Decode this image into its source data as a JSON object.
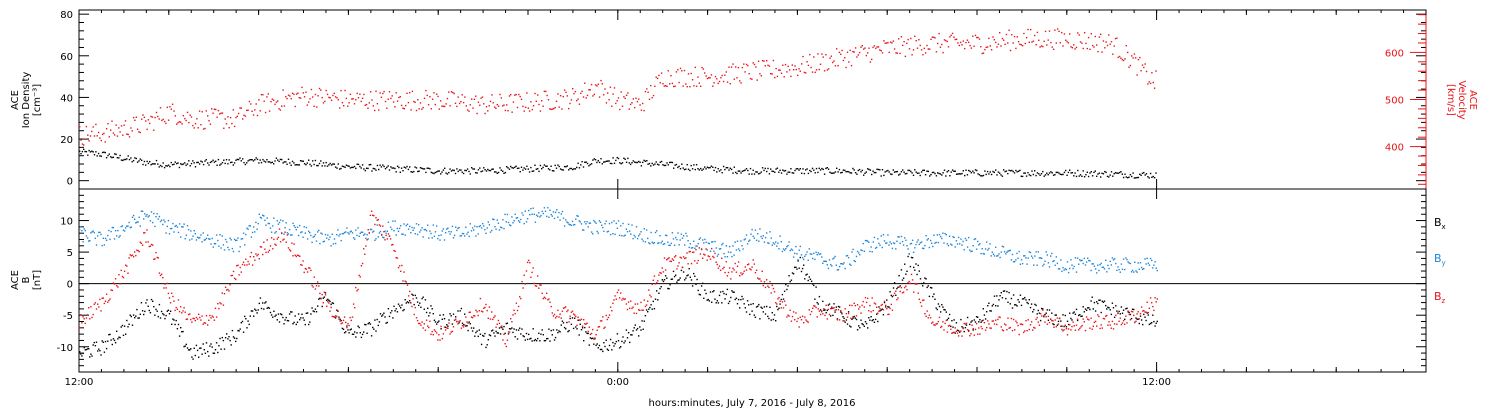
{
  "xaxis": {
    "title": "hours:minutes, July  7, 2016 - July  8, 2016",
    "tick_labels": [
      "12:00",
      "0:00",
      "12:00"
    ],
    "range_hours": [
      0,
      30
    ],
    "data_end_hours": 24
  },
  "colors": {
    "black": "#000000",
    "red": "#e8141a",
    "blue": "#1f86d8"
  },
  "chart_data": [
    {
      "type": "scatter",
      "panel": "ion-density-velocity",
      "ylabel_left": [
        "ACE",
        "Ion Density",
        "[cm⁻³]"
      ],
      "ylim_left": [
        -4,
        82
      ],
      "yticks_left": [
        "80",
        "60",
        "40",
        "20",
        "0"
      ],
      "ylabel_right": [
        "ACE",
        "Velocity",
        "[km/s]"
      ],
      "ylim_right": [
        310,
        690
      ],
      "yticks_right": [
        "600",
        "500",
        "400"
      ],
      "series": [
        {
          "key": "density",
          "axis": "left",
          "color": "black",
          "x": [
            0,
            0.5,
            1,
            1.5,
            2,
            3,
            4,
            5,
            6,
            7,
            8,
            9,
            10,
            11,
            11.5,
            12,
            13,
            14,
            15,
            16,
            17,
            18,
            19,
            20,
            21,
            22,
            23,
            23.9
          ],
          "y": [
            14,
            13,
            11,
            9,
            8,
            9,
            10,
            9,
            7,
            6,
            5,
            5,
            6,
            7,
            10,
            10,
            8,
            6,
            5,
            5,
            5,
            4,
            4,
            4,
            4,
            4,
            3.5,
            3
          ]
        },
        {
          "key": "velocity",
          "axis": "right",
          "color": "red",
          "x": [
            0,
            0.5,
            1,
            1.5,
            2,
            2.5,
            3,
            3.5,
            4,
            5,
            6,
            7,
            8,
            9,
            10,
            11,
            11.5,
            12,
            12.5,
            13,
            14,
            15,
            16,
            17,
            18,
            19,
            20,
            21,
            22,
            23,
            23.5,
            23.9
          ],
          "y": [
            425,
            430,
            440,
            450,
            475,
            460,
            460,
            460,
            490,
            510,
            500,
            500,
            500,
            490,
            495,
            505,
            530,
            500,
            490,
            550,
            550,
            560,
            570,
            590,
            610,
            620,
            620,
            630,
            630,
            620,
            580,
            540
          ]
        }
      ]
    },
    {
      "type": "scatter",
      "panel": "magnetic-field",
      "ylabel": [
        "ACE",
        "B",
        "[nT]"
      ],
      "ylim": [
        -14,
        15
      ],
      "yticks": [
        "10",
        "5",
        "0",
        "-5",
        "-10"
      ],
      "zero_line": 0,
      "series": [
        {
          "key": "bx",
          "name": "B",
          "sub": "x",
          "color": "black",
          "x": [
            0,
            0.5,
            1,
            1.5,
            2,
            2.5,
            3,
            3.5,
            4,
            4.5,
            5,
            5.5,
            6,
            6.5,
            7,
            7.5,
            8,
            8.5,
            9,
            9.5,
            10,
            10.5,
            11,
            11.5,
            12,
            12.5,
            13,
            13.5,
            14,
            14.5,
            15,
            15.5,
            16,
            16.5,
            17,
            17.5,
            18,
            18.5,
            19,
            19.5,
            20,
            20.5,
            21,
            21.5,
            22,
            22.5,
            23,
            23.5,
            23.9
          ],
          "y": [
            -11,
            -10,
            -7,
            -3,
            -5,
            -11,
            -10,
            -8,
            -3,
            -5,
            -6,
            -2,
            -8,
            -7,
            -4,
            -2,
            -6,
            -5,
            -9,
            -7,
            -8,
            -8,
            -6,
            -10,
            -9,
            -7,
            0,
            2,
            -2,
            -2,
            -4,
            -5,
            4,
            -3,
            -5,
            -7,
            -3,
            4,
            -2,
            -7,
            -6,
            -2,
            -3,
            -5,
            -6,
            -3,
            -4,
            -5,
            -6
          ]
        },
        {
          "key": "by",
          "name": "B",
          "sub": "y",
          "color": "blue",
          "x": [
            0,
            0.5,
            1,
            1.5,
            2,
            2.5,
            3,
            3.5,
            4,
            4.5,
            5,
            5.5,
            6,
            6.5,
            7,
            7.5,
            8,
            8.5,
            9,
            9.5,
            10,
            10.5,
            11,
            11.5,
            12,
            12.5,
            13,
            13.5,
            14,
            14.5,
            15,
            15.5,
            16,
            16.5,
            17,
            17.5,
            18,
            18.5,
            19,
            19.5,
            20,
            20.5,
            21,
            21.5,
            22,
            22.5,
            23,
            23.5,
            23.9
          ],
          "y": [
            8,
            7,
            9,
            11,
            9,
            8,
            7,
            6,
            10,
            9,
            8,
            7,
            8,
            8,
            9,
            9,
            8,
            8,
            9,
            10,
            11,
            11,
            10,
            9,
            9,
            8,
            7,
            7,
            6,
            5,
            8,
            7,
            5,
            4,
            3,
            6,
            7,
            6,
            7,
            7,
            6,
            5,
            4,
            4,
            3,
            3,
            3,
            3,
            3
          ]
        },
        {
          "key": "bz",
          "name": "B",
          "sub": "z",
          "color": "red",
          "x": [
            0,
            0.5,
            1,
            1.5,
            2,
            2.5,
            3,
            3.5,
            4,
            4.5,
            5,
            5.5,
            6,
            6.5,
            7,
            7.5,
            8,
            8.5,
            9,
            9.5,
            10,
            10.5,
            11,
            11.5,
            12,
            12.5,
            13,
            13.5,
            14,
            14.5,
            15,
            15.5,
            16,
            16.5,
            17,
            17.5,
            18,
            18.5,
            19,
            19.5,
            20,
            20.5,
            21,
            21.5,
            22,
            22.5,
            23,
            23.5,
            23.9
          ],
          "y": [
            -6,
            -3,
            2,
            8,
            -2,
            -6,
            -5,
            2,
            5,
            8,
            3,
            -3,
            -7,
            11,
            6,
            -5,
            -8,
            -6,
            -3,
            -9,
            3,
            -4,
            -5,
            -8,
            -2,
            -4,
            3,
            4,
            5,
            2,
            3,
            -2,
            -6,
            -4,
            -5,
            -3,
            -4,
            1,
            -6,
            -7,
            -7,
            -6,
            -7,
            -5,
            -7,
            -6,
            -6,
            -5,
            -3
          ]
        }
      ]
    }
  ]
}
